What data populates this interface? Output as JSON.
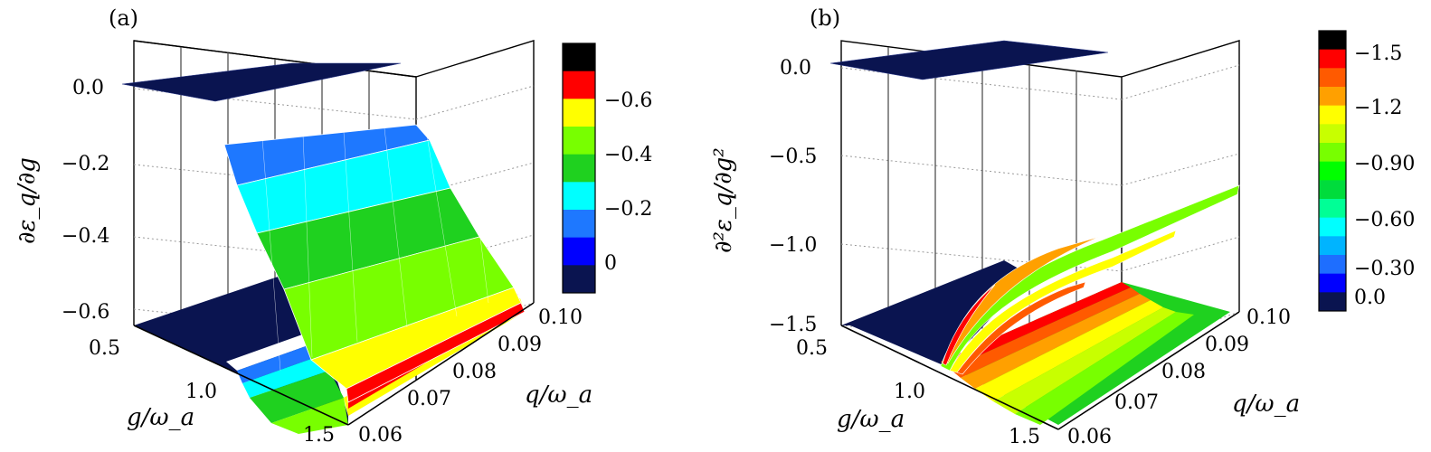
{
  "chart_data": [
    {
      "panel": "(a)",
      "type": "surface3d",
      "title": "",
      "zlabel": "∂ε_q/∂g",
      "xlabel": "g/ω_a",
      "ylabel": "q/ω_a",
      "z_ticks": [
        "0.0",
        "−0.2",
        "−0.4",
        "−0.6"
      ],
      "x_ticks": [
        "0.5",
        "1.0",
        "1.5"
      ],
      "y_ticks": [
        "0.06",
        "0.07",
        "0.08",
        "0.09",
        "0.10"
      ],
      "x_range": [
        0.5,
        1.5
      ],
      "y_range": [
        0.06,
        0.1
      ],
      "z_range": [
        -0.65,
        0.1
      ],
      "grid": true,
      "colorbar": {
        "labels": [
          "−0.6",
          "−0.4",
          "−0.2",
          "0"
        ],
        "colors": [
          "#000000",
          "#ff0000",
          "#ffff00",
          "#78ff00",
          "#1fd11f",
          "#00ffff",
          "#1e78ff",
          "#0000ff",
          "#0a1450"
        ]
      },
      "surface_description": {
        "flat_region": {
          "g_max": 1.0,
          "value": 0.0
        },
        "samples": [
          {
            "g": 1.0,
            "z": -0.2
          },
          {
            "g": 1.1,
            "z": -0.3
          },
          {
            "g": 1.2,
            "z": -0.4
          },
          {
            "g": 1.35,
            "z": -0.5
          },
          {
            "g": 1.5,
            "z": -0.6
          }
        ]
      }
    },
    {
      "panel": "(b)",
      "type": "surface3d",
      "title": "",
      "zlabel": "∂²ε_q/∂g²",
      "xlabel": "g/ω_a",
      "ylabel": "q/ω_a",
      "z_ticks": [
        "0.0",
        "−0.5",
        "−1.0",
        "−1.5"
      ],
      "x_ticks": [
        "0.5",
        "1.0",
        "1.5"
      ],
      "y_ticks": [
        "0.06",
        "0.07",
        "0.08",
        "0.09",
        "0.10"
      ],
      "x_range": [
        0.5,
        1.5
      ],
      "y_range": [
        0.06,
        0.1
      ],
      "z_range": [
        -1.5,
        0.1
      ],
      "grid": true,
      "colorbar": {
        "labels": [
          "−1.5",
          "−1.2",
          "−0.90",
          "−0.60",
          "−0.30",
          "0.0"
        ],
        "colors": [
          "#000000",
          "#ff0000",
          "#ff5a00",
          "#ffa000",
          "#ffff00",
          "#c8ff00",
          "#78ff00",
          "#00ff00",
          "#00dc3c",
          "#00ff96",
          "#00ffff",
          "#00b4ff",
          "#1e6eff",
          "#0000ff",
          "#0a1450"
        ]
      },
      "surface_description": {
        "flat_region": {
          "g_max": 1.0,
          "value": 0.0
        },
        "samples": [
          {
            "g": 1.0,
            "z": -1.5
          },
          {
            "g": 1.1,
            "z": -0.9
          },
          {
            "g": 1.3,
            "z": -0.85
          },
          {
            "g": 1.5,
            "z": -0.8
          }
        ]
      }
    }
  ],
  "panels": {
    "a": {
      "tag": "(a)"
    },
    "b": {
      "tag": "(b)"
    }
  }
}
